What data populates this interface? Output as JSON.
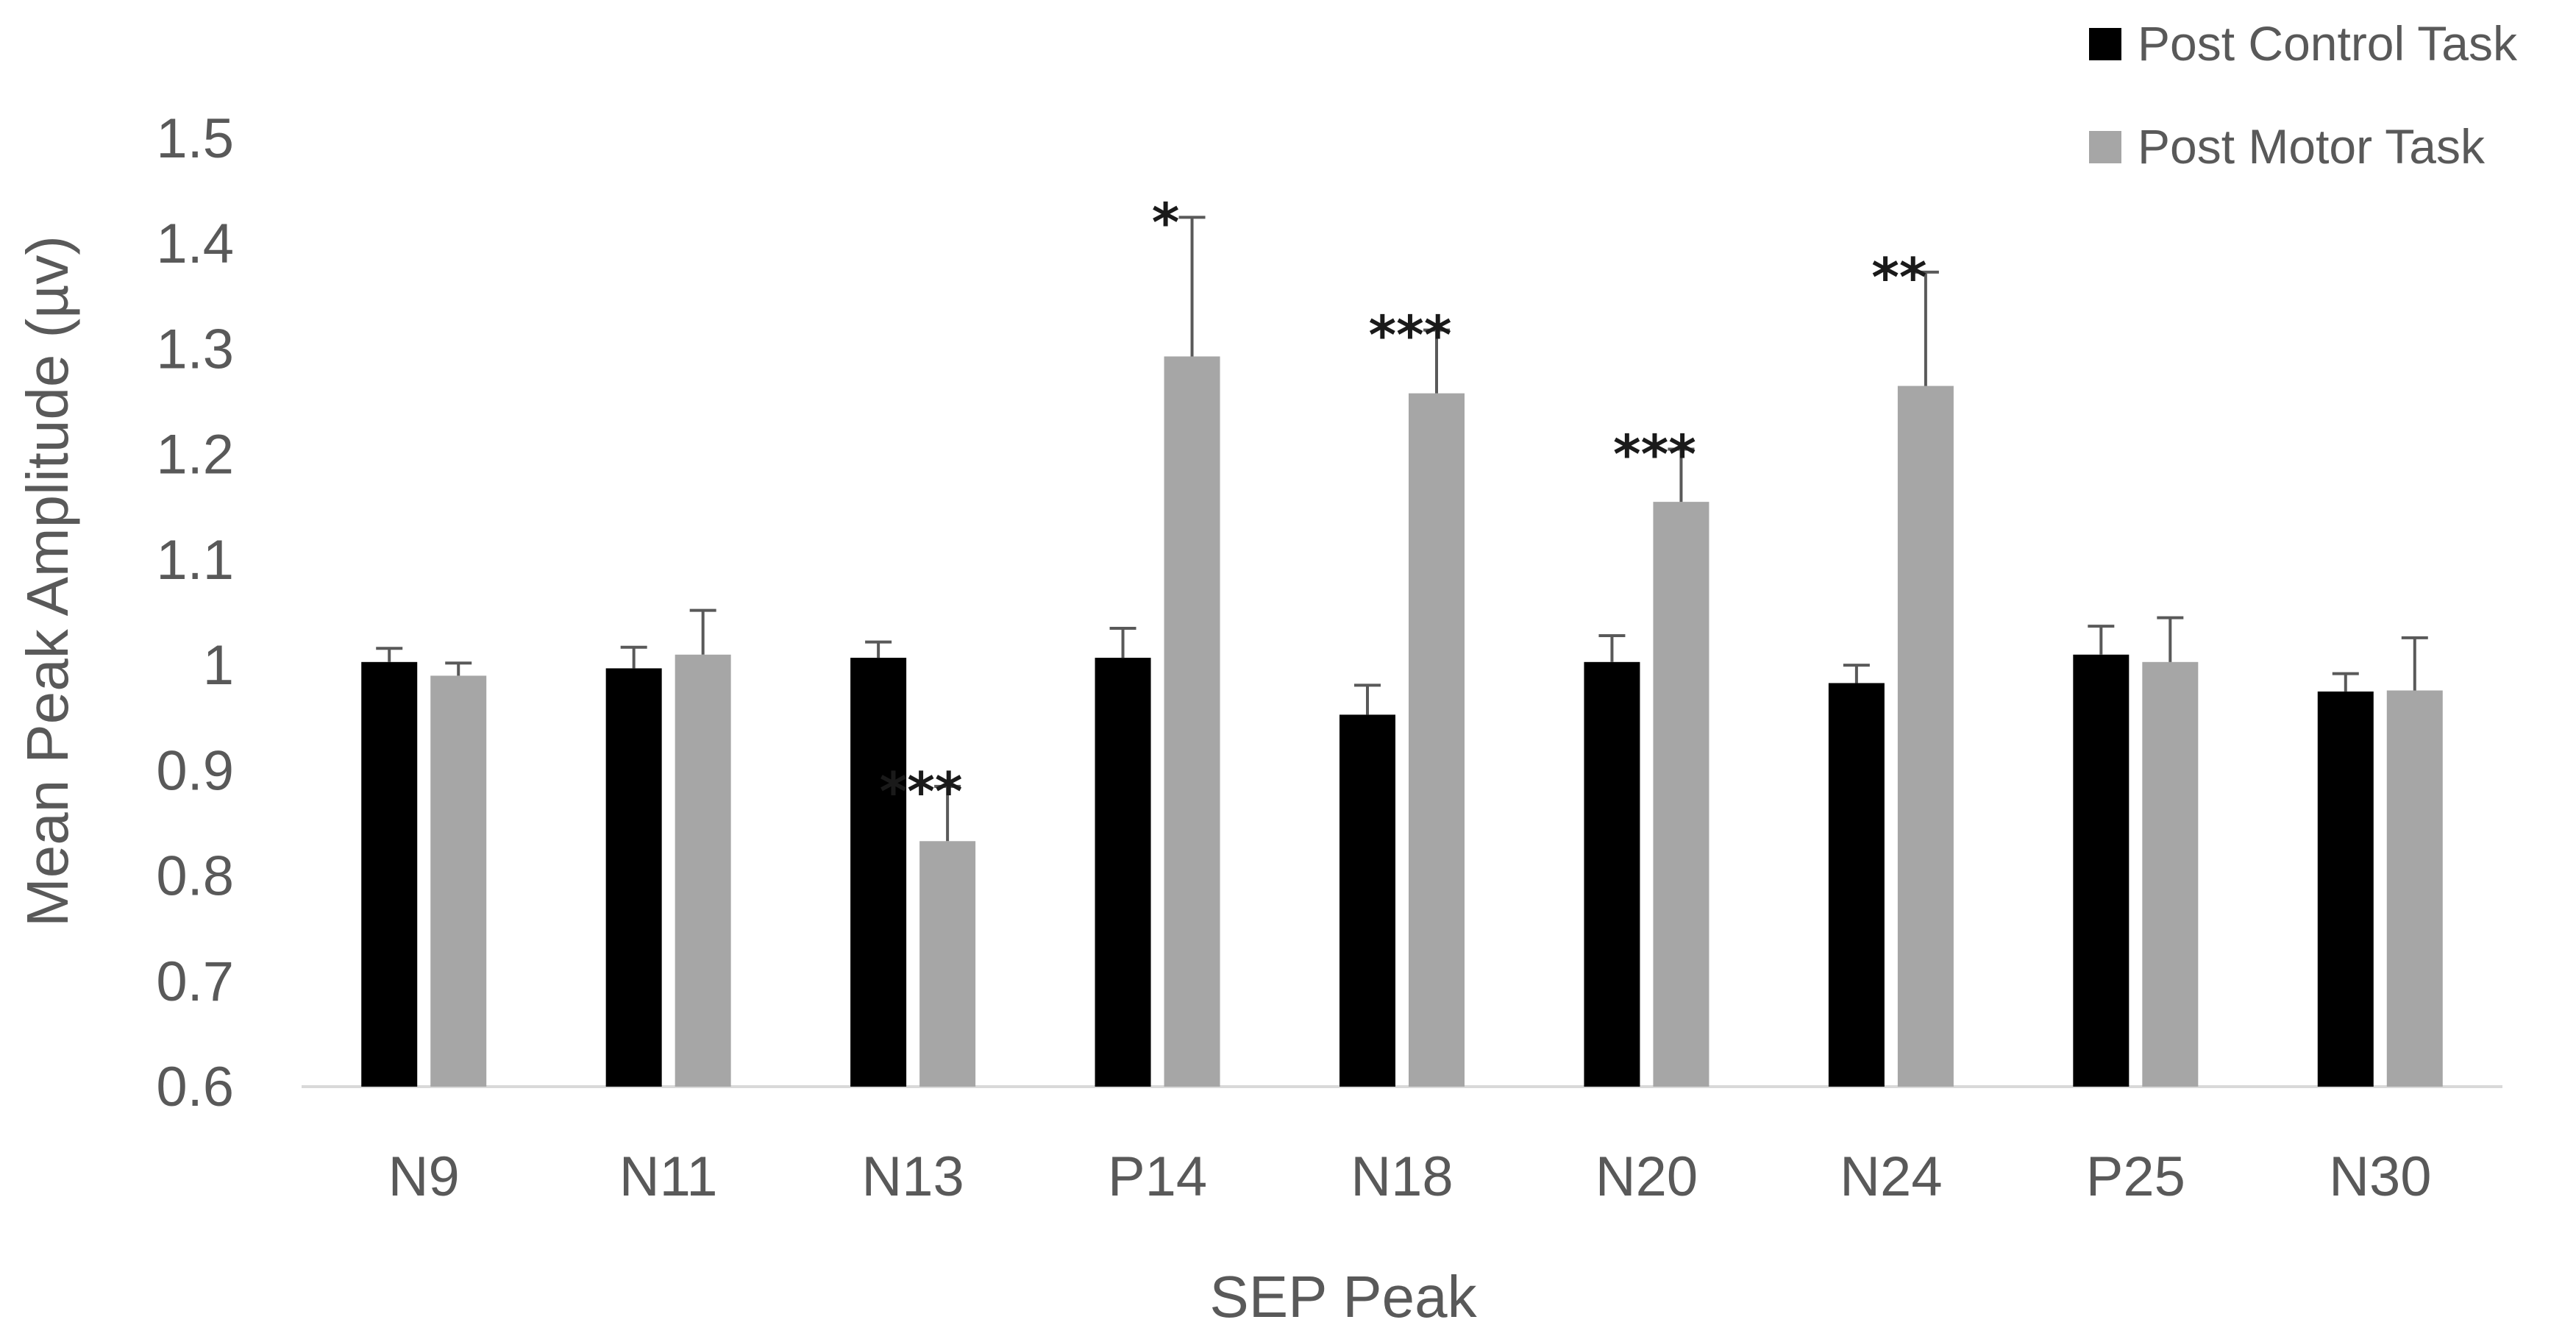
{
  "chart_data": {
    "type": "bar",
    "title": "",
    "xlabel": "SEP Peak",
    "ylabel": "Mean Peak Amplitude (µv)",
    "ylim": [
      0.6,
      1.5
    ],
    "yticks": [
      "0.6",
      "0.7",
      "0.8",
      "0.9",
      "1",
      "1.1",
      "1.2",
      "1.3",
      "1.4",
      "1.5"
    ],
    "categories": [
      "N9",
      "N11",
      "N13",
      "P14",
      "N18",
      "N20",
      "N24",
      "P25",
      "N30"
    ],
    "series": [
      {
        "name": "Post Control Task",
        "color": "#000000",
        "values": [
          1.003,
          0.997,
          1.007,
          1.007,
          0.953,
          1.003,
          0.983,
          1.01,
          0.975
        ],
        "errors": [
          0.013,
          0.02,
          0.015,
          0.028,
          0.028,
          0.025,
          0.017,
          0.027,
          0.017
        ]
      },
      {
        "name": "Post Motor Task",
        "color": "#a6a6a6",
        "values": [
          0.99,
          1.01,
          0.833,
          1.293,
          1.258,
          1.155,
          1.265,
          1.003,
          0.976
        ],
        "errors": [
          0.012,
          0.042,
          0.052,
          0.132,
          0.06,
          0.05,
          0.108,
          0.042,
          0.05
        ]
      }
    ],
    "annotations": [
      {
        "category": "N13",
        "text": "***"
      },
      {
        "category": "P14",
        "text": "*"
      },
      {
        "category": "N18",
        "text": "***"
      },
      {
        "category": "N20",
        "text": "***"
      },
      {
        "category": "N24",
        "text": "**"
      }
    ],
    "legend": {
      "position": "top-right"
    }
  }
}
